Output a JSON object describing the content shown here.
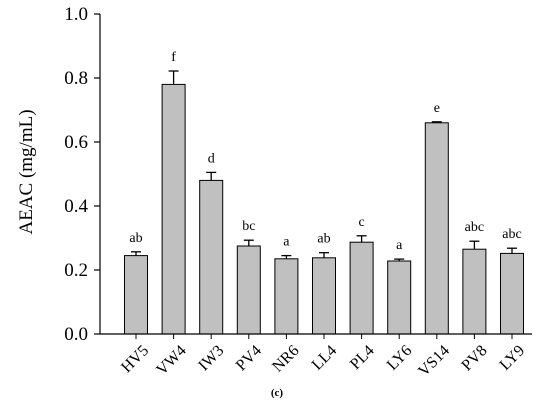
{
  "chart_data": {
    "type": "bar",
    "ylabel": "AEAC (mg/mL)",
    "xlabel": "",
    "ylim": [
      0,
      1.0
    ],
    "yticks": [
      "0.0",
      "0.2",
      "0.4",
      "0.6",
      "0.8",
      "1.0"
    ],
    "categories": [
      "HV5",
      "VW4",
      "IW3",
      "PV4",
      "NR6",
      "LL4",
      "PL4",
      "LY6",
      "VS14",
      "PV8",
      "LY9"
    ],
    "values": [
      0.245,
      0.78,
      0.48,
      0.275,
      0.235,
      0.238,
      0.287,
      0.228,
      0.66,
      0.265,
      0.252
    ],
    "errors": [
      0.012,
      0.042,
      0.025,
      0.018,
      0.01,
      0.016,
      0.02,
      0.006,
      0.003,
      0.025,
      0.016
    ],
    "significance": [
      "ab",
      "f",
      "d",
      "bc",
      "a",
      "ab",
      "c",
      "a",
      "e",
      "abc",
      "abc"
    ],
    "bar_color": "#c0c0c0",
    "bar_edge_color": "#000000",
    "grid": false,
    "legend": "none"
  },
  "caption": "(c)"
}
